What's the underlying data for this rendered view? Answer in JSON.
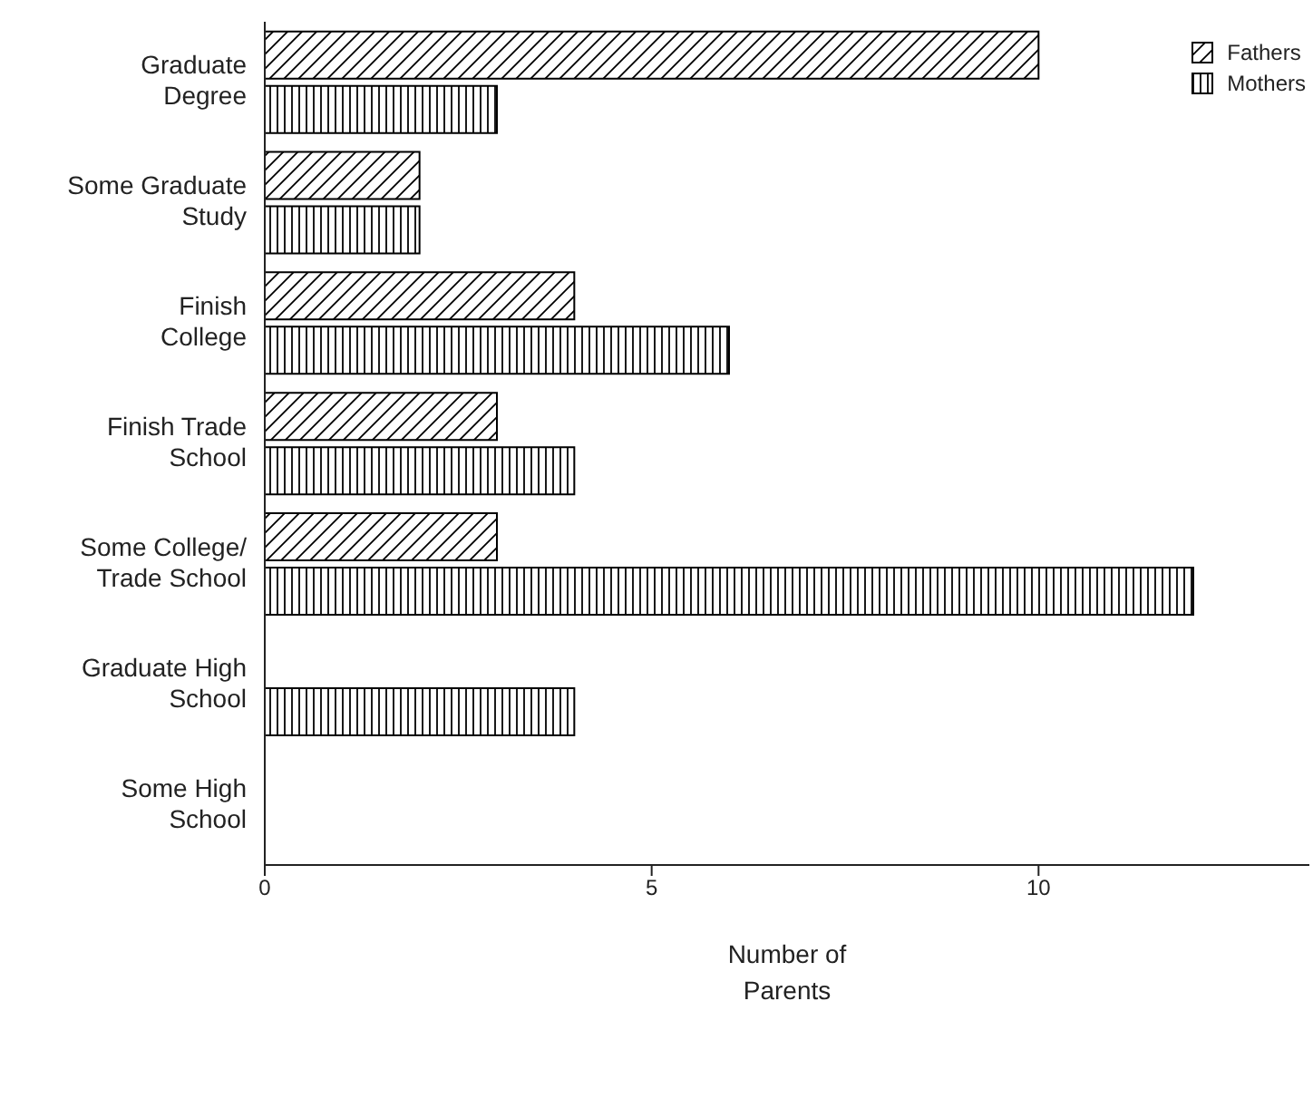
{
  "chart_data": {
    "type": "bar",
    "orientation": "horizontal",
    "xlabel": "Number of\nParents",
    "categories": [
      "Graduate\nDegree",
      "Some Graduate\nStudy",
      "Finish\nCollege",
      "Finish Trade\nSchool",
      "Some College/\nTrade School",
      "Graduate High\nSchool",
      "Some High\nSchool"
    ],
    "series": [
      {
        "name": "Fathers",
        "color": "#000000",
        "values": [
          10,
          2,
          4,
          3,
          3,
          0,
          0
        ]
      },
      {
        "name": "Mothers",
        "color": "#000000",
        "values": [
          3,
          2,
          6,
          4,
          12,
          4,
          0
        ]
      }
    ],
    "xlim": [
      0,
      13.5
    ],
    "xticks": [
      0,
      5,
      10
    ],
    "legend": "top right"
  }
}
